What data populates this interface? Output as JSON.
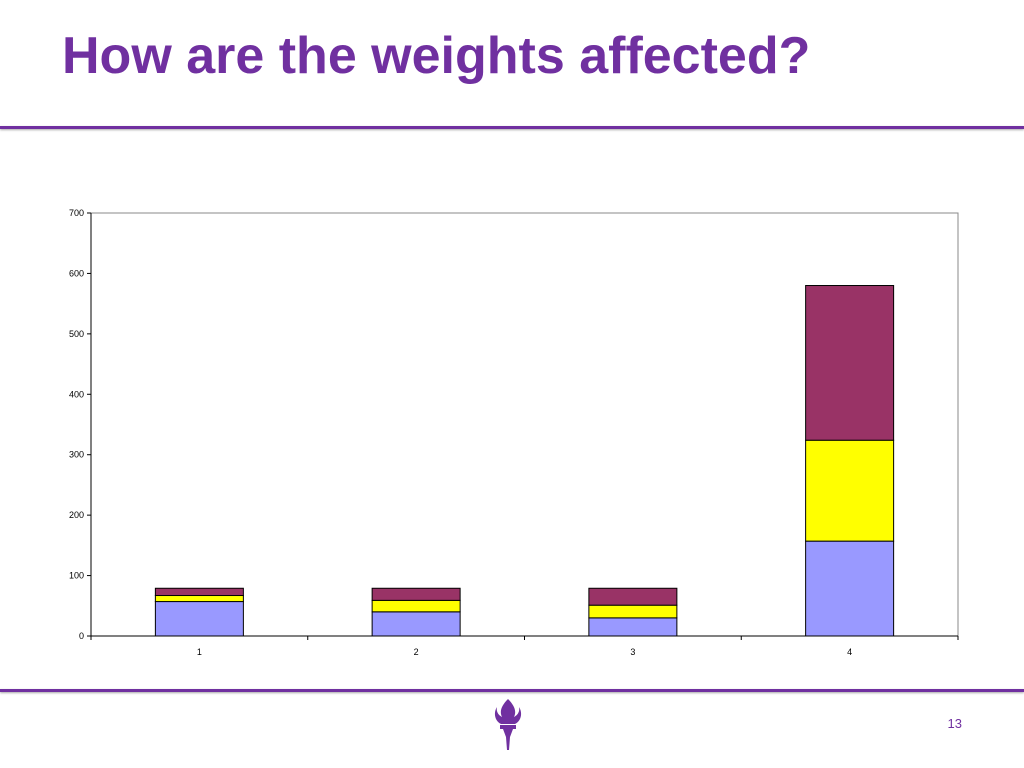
{
  "slide": {
    "title": "How are the weights affected?",
    "page_number": "13",
    "accent_color": "#7030a0",
    "logo_icon": "torch-icon"
  },
  "chart_data": {
    "type": "bar",
    "stacked": true,
    "title": "",
    "xlabel": "",
    "ylabel": "",
    "categories": [
      "1",
      "2",
      "3",
      "4"
    ],
    "ylim": [
      0,
      700
    ],
    "yticks": [
      0,
      100,
      200,
      300,
      400,
      500,
      600,
      700
    ],
    "grid": false,
    "legend": "none",
    "series": [
      {
        "color": "#9999ff",
        "values": [
          57,
          40,
          30,
          157
        ]
      },
      {
        "color": "#ffff00",
        "values": [
          10,
          19,
          21,
          167
        ]
      },
      {
        "color": "#993366",
        "values": [
          12,
          20,
          28,
          256
        ]
      }
    ]
  }
}
